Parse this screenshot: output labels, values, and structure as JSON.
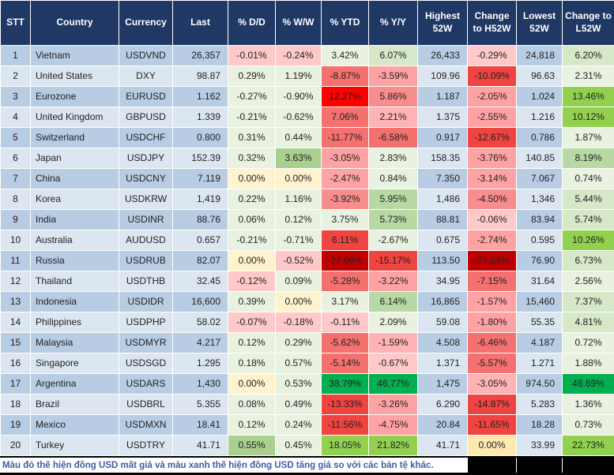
{
  "chart_data": {
    "type": "table",
    "columns": [
      "STT",
      "Country",
      "Currency",
      "Last",
      "% D/D",
      "% W/W",
      "% YTD",
      "% Y/Y",
      "Highest 52W",
      "Change to H52W",
      "Lowest 52W",
      "Change to L52W"
    ],
    "rows": [
      {
        "stt": "1",
        "country": "Vietnam",
        "currency": "USDVND",
        "last": "26,357",
        "dd": "-0.01%",
        "dd_tone": "r1",
        "ww": "-0.24%",
        "ww_tone": "r1",
        "ytd": "3.42%",
        "ytd_tone": "g0",
        "yy": "6.07%",
        "yy_tone": "g1",
        "high52": "26,433",
        "chg_h": "-0.29%",
        "chg_h_tone": "r1",
        "low52": "24,818",
        "chg_l": "6.20%",
        "chg_l_tone": "g1"
      },
      {
        "stt": "2",
        "country": "United States",
        "currency": "DXY",
        "last": "98.87",
        "dd": "0.29%",
        "dd_tone": "g0",
        "ww": "1.19%",
        "ww_tone": "g0",
        "ytd": "-8.87%",
        "ytd_tone": "r3",
        "yy": "-3.59%",
        "yy_tone": "r2",
        "high52": "109.96",
        "chg_h": "-10.09%",
        "chg_h_tone": "r3b",
        "low52": "96.63",
        "chg_l": "2.31%",
        "chg_l_tone": "g0"
      },
      {
        "stt": "3",
        "country": "Eurozone",
        "currency": "EURUSD",
        "last": "1.162",
        "dd": "-0.27%",
        "dd_tone": "g0",
        "ww": "-0.90%",
        "ww_tone": "g0",
        "ytd": "12.27%",
        "ytd_tone": "r4",
        "yy": "5.86%",
        "yy_tone": "r25",
        "high52": "1.187",
        "chg_h": "-2.05%",
        "chg_h_tone": "r2",
        "low52": "1.024",
        "chg_l": "13.46%",
        "chg_l_tone": "g4"
      },
      {
        "stt": "4",
        "country": "United Kingdom",
        "currency": "GBPUSD",
        "last": "1.339",
        "dd": "-0.21%",
        "dd_tone": "g0",
        "ww": "-0.62%",
        "ww_tone": "g0",
        "ytd": "7.06%",
        "ytd_tone": "r3",
        "yy": "2.21%",
        "yy_tone": "r15",
        "high52": "1.375",
        "chg_h": "-2.55%",
        "chg_h_tone": "r2",
        "low52": "1.216",
        "chg_l": "10.12%",
        "chg_l_tone": "g4"
      },
      {
        "stt": "5",
        "country": "Switzerland",
        "currency": "USDCHF",
        "last": "0.800",
        "dd": "0.31%",
        "dd_tone": "g0",
        "ww": "0.44%",
        "ww_tone": "g0",
        "ytd": "-11.77%",
        "ytd_tone": "r3",
        "yy": "-6.58%",
        "yy_tone": "r3",
        "high52": "0.917",
        "chg_h": "-12.67%",
        "chg_h_tone": "r3b",
        "low52": "0.786",
        "chg_l": "1.87%",
        "chg_l_tone": "g0"
      },
      {
        "stt": "6",
        "country": "Japan",
        "currency": "USDJPY",
        "last": "152.39",
        "dd": "0.32%",
        "dd_tone": "g0",
        "ww": "3.63%",
        "ww_tone": "g3",
        "ytd": "-3.05%",
        "ytd_tone": "r2",
        "yy": "2.83%",
        "yy_tone": "g0",
        "high52": "158.35",
        "chg_h": "-3.76%",
        "chg_h_tone": "r2",
        "low52": "140.85",
        "chg_l": "8.19%",
        "chg_l_tone": "g2"
      },
      {
        "stt": "7",
        "country": "China",
        "currency": "USDCNY",
        "last": "7.119",
        "dd": "0.00%",
        "dd_tone": "y1",
        "ww": "0.00%",
        "ww_tone": "y1",
        "ytd": "-2.47%",
        "ytd_tone": "r2",
        "yy": "0.84%",
        "yy_tone": "g0",
        "high52": "7.350",
        "chg_h": "-3.14%",
        "chg_h_tone": "r2",
        "low52": "7.067",
        "chg_l": "0.74%",
        "chg_l_tone": "g0"
      },
      {
        "stt": "8",
        "country": "Korea",
        "currency": "USDKRW",
        "last": "1,419",
        "dd": "0.22%",
        "dd_tone": "g0",
        "ww": "1.16%",
        "ww_tone": "g0",
        "ytd": "-3.92%",
        "ytd_tone": "r25",
        "yy": "5.95%",
        "yy_tone": "g2",
        "high52": "1,486",
        "chg_h": "-4.50%",
        "chg_h_tone": "r25",
        "low52": "1,346",
        "chg_l": "5.44%",
        "chg_l_tone": "g1"
      },
      {
        "stt": "9",
        "country": "India",
        "currency": "USDINR",
        "last": "88.76",
        "dd": "0.06%",
        "dd_tone": "g0",
        "ww": "0.12%",
        "ww_tone": "g0",
        "ytd": "3.75%",
        "ytd_tone": "g0",
        "yy": "5.73%",
        "yy_tone": "g2",
        "high52": "88.81",
        "chg_h": "-0.06%",
        "chg_h_tone": "r1",
        "low52": "83.94",
        "chg_l": "5.74%",
        "chg_l_tone": "g1"
      },
      {
        "stt": "10",
        "country": "Australia",
        "currency": "AUDUSD",
        "last": "0.657",
        "dd": "-0.21%",
        "dd_tone": "g0",
        "ww": "-0.71%",
        "ww_tone": "g0",
        "ytd": "6.11%",
        "ytd_tone": "r3b",
        "yy": "-2.67%",
        "yy_tone": "g0",
        "high52": "0.675",
        "chg_h": "-2.74%",
        "chg_h_tone": "r2",
        "low52": "0.595",
        "chg_l": "10.26%",
        "chg_l_tone": "g4"
      },
      {
        "stt": "11",
        "country": "Russia",
        "currency": "USDRUB",
        "last": "82.07",
        "dd": "0.00%",
        "dd_tone": "y1",
        "ww": "-0.52%",
        "ww_tone": "r1",
        "ytd": "-27.69%",
        "ytd_tone": "r5",
        "yy": "-15.17%",
        "yy_tone": "r3b",
        "high52": "113.50",
        "chg_h": "-27.69%",
        "chg_h_tone": "r5",
        "low52": "76.90",
        "chg_l": "6.73%",
        "chg_l_tone": "g1"
      },
      {
        "stt": "12",
        "country": "Thailand",
        "currency": "USDTHB",
        "last": "32.45",
        "dd": "-0.12%",
        "dd_tone": "r1",
        "ww": "0.09%",
        "ww_tone": "g0",
        "ytd": "-5.28%",
        "ytd_tone": "r3",
        "yy": "-3.22%",
        "yy_tone": "r2",
        "high52": "34.95",
        "chg_h": "-7.15%",
        "chg_h_tone": "r3",
        "low52": "31.64",
        "chg_l": "2.56%",
        "chg_l_tone": "g0"
      },
      {
        "stt": "13",
        "country": "Indonesia",
        "currency": "USDIDR",
        "last": "16,600",
        "dd": "0.39%",
        "dd_tone": "g0",
        "ww": "0.00%",
        "ww_tone": "y1",
        "ytd": "3.17%",
        "ytd_tone": "g0",
        "yy": "6.14%",
        "yy_tone": "g2",
        "high52": "16,865",
        "chg_h": "-1.57%",
        "chg_h_tone": "r2",
        "low52": "15,460",
        "chg_l": "7.37%",
        "chg_l_tone": "g1"
      },
      {
        "stt": "14",
        "country": "Philippines",
        "currency": "USDPHP",
        "last": "58.02",
        "dd": "-0.07%",
        "dd_tone": "r1",
        "ww": "-0.18%",
        "ww_tone": "r1",
        "ytd": "-0.11%",
        "ytd_tone": "r1",
        "yy": "2.09%",
        "yy_tone": "g0",
        "high52": "59.08",
        "chg_h": "-1.80%",
        "chg_h_tone": "r2",
        "low52": "55.35",
        "chg_l": "4.81%",
        "chg_l_tone": "g1"
      },
      {
        "stt": "15",
        "country": "Malaysia",
        "currency": "USDMYR",
        "last": "4.217",
        "dd": "0.12%",
        "dd_tone": "g0",
        "ww": "0.29%",
        "ww_tone": "g0",
        "ytd": "-5.62%",
        "ytd_tone": "r3",
        "yy": "-1.59%",
        "yy_tone": "r15",
        "high52": "4.508",
        "chg_h": "-6.46%",
        "chg_h_tone": "r3",
        "low52": "4.187",
        "chg_l": "0.72%",
        "chg_l_tone": "g0"
      },
      {
        "stt": "16",
        "country": "Singapore",
        "currency": "USDSGD",
        "last": "1.295",
        "dd": "0.18%",
        "dd_tone": "g0",
        "ww": "0.57%",
        "ww_tone": "g0",
        "ytd": "-5.14%",
        "ytd_tone": "r3",
        "yy": "-0.67%",
        "yy_tone": "r1",
        "high52": "1.371",
        "chg_h": "-5.57%",
        "chg_h_tone": "r3",
        "low52": "1.271",
        "chg_l": "1.88%",
        "chg_l_tone": "g0"
      },
      {
        "stt": "17",
        "country": "Argentina",
        "currency": "USDARS",
        "last": "1,430",
        "dd": "0.00%",
        "dd_tone": "y1",
        "ww": "0.53%",
        "ww_tone": "g0",
        "ytd": "38.79%",
        "ytd_tone": "g5",
        "yy": "46.77%",
        "yy_tone": "g5",
        "high52": "1,475",
        "chg_h": "-3.05%",
        "chg_h_tone": "r15",
        "low52": "974.50",
        "chg_l": "46.69%",
        "chg_l_tone": "g5"
      },
      {
        "stt": "18",
        "country": "Brazil",
        "currency": "USDBRL",
        "last": "5.355",
        "dd": "0.08%",
        "dd_tone": "g0",
        "ww": "0.49%",
        "ww_tone": "g0",
        "ytd": "-13.33%",
        "ytd_tone": "r3b",
        "yy": "-3.26%",
        "yy_tone": "r2",
        "high52": "6.290",
        "chg_h": "-14.87%",
        "chg_h_tone": "r3b",
        "low52": "5.283",
        "chg_l": "1.36%",
        "chg_l_tone": "g0"
      },
      {
        "stt": "19",
        "country": "Mexico",
        "currency": "USDMXN",
        "last": "18.41",
        "dd": "0.12%",
        "dd_tone": "g0",
        "ww": "0.24%",
        "ww_tone": "g0",
        "ytd": "-11.56%",
        "ytd_tone": "r3b",
        "yy": "-4.75%",
        "yy_tone": "r2",
        "high52": "20.84",
        "chg_h": "-11.65%",
        "chg_h_tone": "r3b",
        "low52": "18.28",
        "chg_l": "0.73%",
        "chg_l_tone": "g0"
      },
      {
        "stt": "20",
        "country": "Turkey",
        "currency": "USDTRY",
        "last": "41.71",
        "dd": "0.55%",
        "dd_tone": "g3",
        "ww": "0.45%",
        "ww_tone": "g0",
        "ytd": "18.05%",
        "ytd_tone": "g4",
        "yy": "21.82%",
        "yy_tone": "g4",
        "high52": "41.71",
        "chg_h": "0.00%",
        "chg_h_tone": "y2",
        "low52": "33.99",
        "chg_l": "22.73%",
        "chg_l_tone": "g4"
      }
    ],
    "footnote": "Màu đỏ thể hiện đồng USD mất giá và màu xanh thể hiện đồng USD tăng giá so với các bản tệ khác."
  },
  "colors": {
    "header_bg": "#1F3864",
    "row_odd": "#B8CCE4",
    "row_even": "#DCE6F1",
    "footnote_text": "#3E5CA8",
    "tones": {
      "g0": "#E9F2E0",
      "g1": "#D6E8C8",
      "g2": "#B8D8A4",
      "g3": "#A9D08E",
      "g4": "#92D050",
      "g5": "#00B050",
      "y1": "#FFF3CE",
      "y2": "#FFE9B0",
      "r1": "#FFC9CA",
      "r15": "#FFB3B5",
      "r2": "#FFA2A4",
      "r25": "#F98C8C",
      "r3": "#F4716F",
      "r3b": "#EF4440",
      "r4": "#FE0000",
      "r5": "#C00000"
    }
  }
}
